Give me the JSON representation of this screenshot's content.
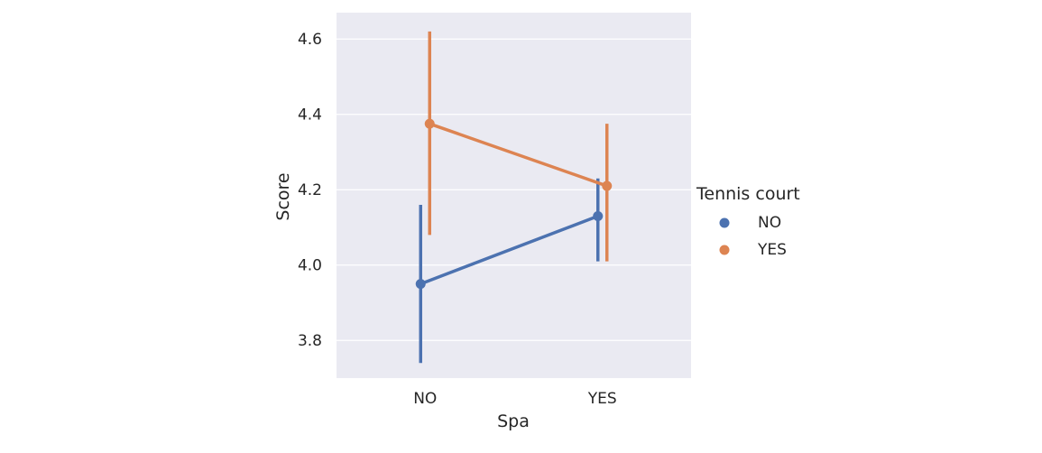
{
  "chart_data": {
    "type": "line",
    "xlabel": "Spa",
    "ylabel": "Score",
    "categories": [
      "NO",
      "YES"
    ],
    "ylim": [
      3.7,
      4.67
    ],
    "yticks": [
      3.8,
      4.0,
      4.2,
      4.4,
      4.6
    ],
    "ytick_labels": [
      "3.8",
      "4.0",
      "4.2",
      "4.4",
      "4.6"
    ],
    "grid": true,
    "legend": {
      "title": "Tennis court",
      "placement": "right",
      "entries": [
        "NO",
        "YES"
      ]
    },
    "series": [
      {
        "name": "NO",
        "color": "#4c72b0",
        "values": [
          3.95,
          4.13
        ],
        "ci_low": [
          3.74,
          4.01
        ],
        "ci_high": [
          4.16,
          4.23
        ]
      },
      {
        "name": "YES",
        "color": "#dd8452",
        "values": [
          4.375,
          4.21
        ],
        "ci_low": [
          4.08,
          4.01
        ],
        "ci_high": [
          4.62,
          4.375
        ]
      }
    ],
    "background_color": "#eaeaf2"
  }
}
